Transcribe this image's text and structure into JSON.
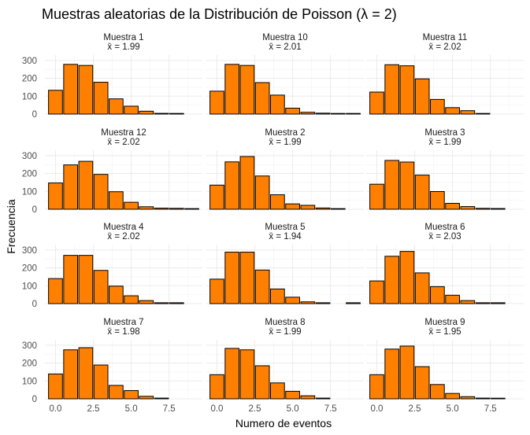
{
  "chart_data": {
    "type": "bar",
    "title": "Muestras aleatorias de la Distribución de Poisson (λ = 2)",
    "xlabel": "Numero de eventos",
    "ylabel": "Frecuencia",
    "xlim": [
      -0.7,
      9.7
    ],
    "ylim": [
      0,
      330
    ],
    "x_ticks": [
      "0.0",
      "2.5",
      "5.0",
      "7.5"
    ],
    "y_ticks": [
      "0",
      "100",
      "200",
      "300"
    ],
    "grid": true,
    "bar_color": "#FF7F00",
    "bar_edge_color": "#000000",
    "panels": [
      {
        "name": "Muestra 1",
        "mean_label": "x̄ = 1.99",
        "x": [
          0,
          1,
          2,
          3,
          4,
          5,
          6,
          7,
          8
        ],
        "values": [
          133,
          278,
          272,
          178,
          85,
          44,
          16,
          4,
          2
        ]
      },
      {
        "name": "Muestra 10",
        "mean_label": "x̄ = 2.01",
        "x": [
          0,
          1,
          2,
          3,
          4,
          5,
          6,
          7,
          8,
          9
        ],
        "values": [
          128,
          278,
          272,
          176,
          106,
          33,
          10,
          5,
          2,
          1
        ]
      },
      {
        "name": "Muestra 11",
        "mean_label": "x̄ = 2.02",
        "x": [
          0,
          1,
          2,
          3,
          4,
          5,
          6,
          7
        ],
        "values": [
          123,
          276,
          270,
          197,
          82,
          36,
          19,
          2
        ]
      },
      {
        "name": "Muestra 12",
        "mean_label": "x̄ = 2.02",
        "x": [
          0,
          1,
          2,
          3,
          4,
          5,
          6,
          7,
          8,
          9
        ],
        "values": [
          147,
          248,
          268,
          195,
          98,
          39,
          14,
          6,
          5,
          2
        ]
      },
      {
        "name": "Muestra 2",
        "mean_label": "x̄ = 1.99",
        "x": [
          0,
          1,
          2,
          3,
          4,
          5,
          6,
          7,
          8
        ],
        "values": [
          135,
          265,
          295,
          186,
          81,
          30,
          22,
          7,
          2
        ]
      },
      {
        "name": "Muestra 3",
        "mean_label": "x̄ = 1.99",
        "x": [
          0,
          1,
          2,
          3,
          4,
          5,
          6,
          7,
          8
        ],
        "values": [
          140,
          273,
          264,
          191,
          99,
          33,
          15,
          5,
          4
        ]
      },
      {
        "name": "Muestra 4",
        "mean_label": "x̄ = 2.02",
        "x": [
          0,
          1,
          2,
          3,
          4,
          5,
          6,
          7,
          8
        ],
        "values": [
          140,
          270,
          270,
          186,
          98,
          44,
          17,
          5,
          5
        ]
      },
      {
        "name": "Muestra 5",
        "mean_label": "x̄ = 1.94",
        "x": [
          0,
          1,
          2,
          3,
          4,
          5,
          6,
          7,
          9
        ],
        "values": [
          137,
          288,
          288,
          188,
          82,
          36,
          10,
          5,
          5
        ]
      },
      {
        "name": "Muestra 6",
        "mean_label": "x̄ = 2.03",
        "x": [
          0,
          1,
          2,
          3,
          4,
          5,
          6,
          7,
          8
        ],
        "values": [
          127,
          265,
          292,
          172,
          95,
          47,
          17,
          5,
          5
        ]
      },
      {
        "name": "Muestra 7",
        "mean_label": "x̄ = 1.98",
        "x": [
          0,
          1,
          2,
          3,
          4,
          5,
          6,
          7
        ],
        "values": [
          139,
          274,
          286,
          189,
          75,
          46,
          14,
          4
        ]
      },
      {
        "name": "Muestra 8",
        "mean_label": "x̄ = 1.99",
        "x": [
          0,
          1,
          2,
          3,
          4,
          5,
          6,
          7
        ],
        "values": [
          135,
          282,
          274,
          185,
          89,
          42,
          17,
          4
        ]
      },
      {
        "name": "Muestra 9",
        "mean_label": "x̄ = 1.95",
        "x": [
          0,
          1,
          2,
          3,
          4,
          5,
          6,
          7,
          8
        ],
        "values": [
          135,
          278,
          295,
          180,
          80,
          30,
          12,
          4,
          2
        ]
      }
    ]
  }
}
